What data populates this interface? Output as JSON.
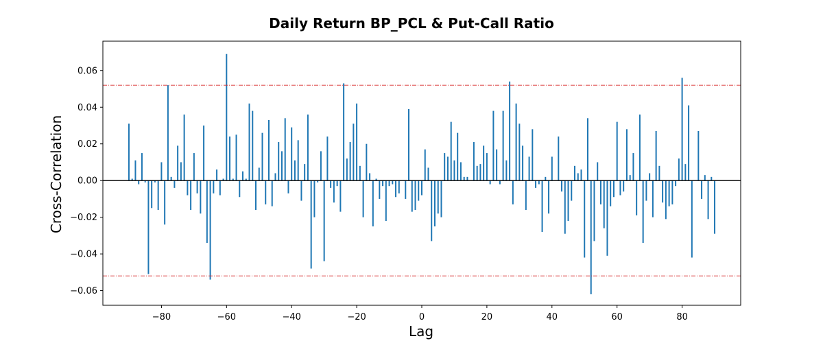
{
  "chart_data": {
    "type": "bar",
    "title": "Daily Return BP_PCL & Put-Call Ratio",
    "xlabel": "Lag",
    "ylabel": "Cross-Correlation",
    "xlim": [
      -98,
      98
    ],
    "ylim": [
      -0.068,
      0.076
    ],
    "x_ticks": [
      -80,
      -60,
      -40,
      -20,
      0,
      20,
      40,
      60,
      80
    ],
    "x_tick_labels": [
      "−80",
      "−60",
      "−40",
      "−20",
      "0",
      "20",
      "40",
      "60",
      "80"
    ],
    "y_ticks": [
      -0.06,
      -0.04,
      -0.02,
      0.0,
      0.02,
      0.04,
      0.06
    ],
    "y_tick_labels": [
      "−0.06",
      "−0.04",
      "−0.02",
      "0.00",
      "0.02",
      "0.04",
      "0.06"
    ],
    "confidence_bound": 0.052,
    "grid": false,
    "colors": {
      "bars": "#1f77b4",
      "confidence": "#d62728",
      "zero_line": "#000000"
    },
    "x_start": -90,
    "values": [
      0.031,
      0.001,
      0.011,
      -0.002,
      0.015,
      -0.001,
      -0.051,
      -0.015,
      -0.001,
      -0.016,
      0.01,
      -0.024,
      0.052,
      0.002,
      -0.004,
      0.019,
      0.01,
      0.036,
      -0.008,
      -0.016,
      0.015,
      -0.007,
      -0.018,
      0.03,
      -0.034,
      -0.054,
      -0.007,
      0.006,
      -0.008,
      0.001,
      0.069,
      0.024,
      0.001,
      0.025,
      -0.009,
      0.005,
      0.001,
      0.042,
      0.038,
      -0.016,
      0.007,
      0.026,
      -0.013,
      0.033,
      -0.014,
      0.004,
      0.021,
      0.016,
      0.034,
      -0.007,
      0.029,
      0.011,
      0.022,
      -0.011,
      0.009,
      0.036,
      -0.048,
      -0.02,
      -0.001,
      0.016,
      -0.044,
      0.024,
      -0.004,
      -0.012,
      -0.003,
      -0.017,
      0.053,
      0.012,
      0.021,
      0.031,
      0.042,
      0.008,
      -0.02,
      0.02,
      0.004,
      -0.025,
      0.001,
      -0.01,
      -0.003,
      -0.022,
      -0.003,
      -0.002,
      -0.009,
      -0.007,
      0.0,
      -0.01,
      0.039,
      -0.017,
      -0.016,
      -0.011,
      -0.008,
      0.017,
      0.007,
      -0.033,
      -0.025,
      -0.018,
      -0.02,
      0.015,
      0.013,
      0.032,
      0.011,
      0.026,
      0.01,
      0.002,
      0.002,
      0.0,
      0.021,
      0.008,
      0.009,
      0.019,
      0.015,
      -0.002,
      0.038,
      0.017,
      -0.002,
      0.038,
      0.011,
      0.054,
      -0.013,
      0.042,
      0.031,
      0.019,
      -0.016,
      0.013,
      0.028,
      -0.004,
      -0.002,
      -0.028,
      0.002,
      -0.018,
      0.013,
      0.0,
      0.024,
      -0.006,
      -0.029,
      -0.022,
      -0.011,
      0.008,
      0.004,
      0.006,
      -0.042,
      0.034,
      -0.062,
      -0.033,
      0.01,
      -0.013,
      -0.026,
      -0.041,
      -0.014,
      -0.009,
      0.032,
      -0.008,
      -0.006,
      0.028,
      0.003,
      0.015,
      -0.019,
      0.036,
      -0.034,
      -0.011,
      0.004,
      -0.02,
      0.027,
      0.008,
      -0.012,
      -0.021,
      -0.014,
      -0.013,
      -0.003,
      0.012,
      0.056,
      0.009,
      0.041,
      -0.042,
      0.0,
      0.027,
      -0.01,
      0.003,
      -0.021,
      0.002,
      -0.029
    ]
  }
}
